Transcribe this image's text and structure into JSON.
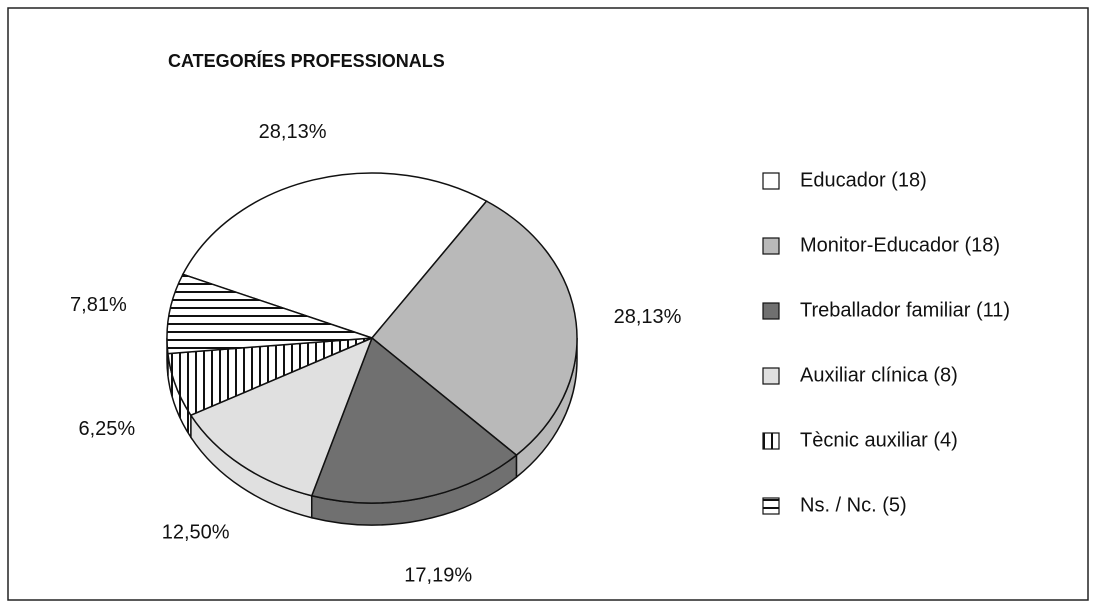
{
  "chart_data": {
    "type": "pie",
    "title": "CATEGORÍES PROFESSIONALS",
    "categories": [
      "Educador (18)",
      "Monitor-Educador (18)",
      "Treballador familiar (11)",
      "Auxiliar clínica (8)",
      "Tècnic auxiliar (4)",
      "Ns. / Nc. (5)"
    ],
    "values": [
      28.13,
      28.13,
      17.19,
      12.5,
      6.25,
      7.81
    ],
    "value_labels": [
      "28,13%",
      "28,13%",
      "17,19%",
      "12,50%",
      "6,25%",
      "7,81%"
    ],
    "colors": [
      "#ffffff",
      "#b9b9b9",
      "#707070",
      "#e0e0e0",
      "#ffffff",
      "#ffffff"
    ],
    "hatches": [
      "none",
      "none",
      "none",
      "none",
      "vertical",
      "horizontal"
    ],
    "legend": "right"
  }
}
